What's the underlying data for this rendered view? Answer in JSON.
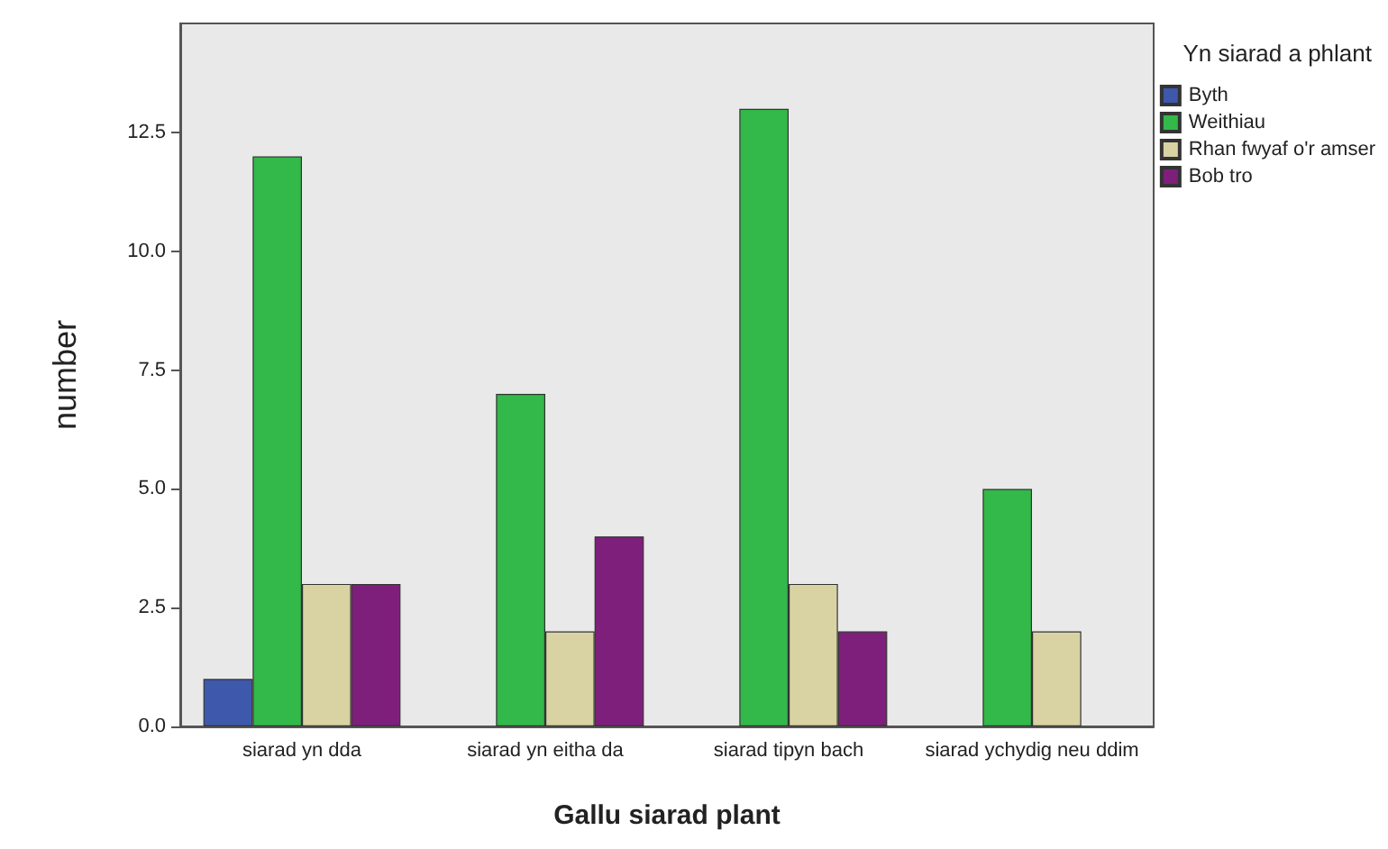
{
  "chart_data": {
    "type": "bar",
    "xlabel": "Gallu siarad plant",
    "ylabel": "number",
    "legend_title": "Yn siarad a phlant",
    "categories": [
      "siarad yn dda",
      "siarad yn eitha da",
      "siarad tipyn bach",
      "siarad ychydig neu ddim"
    ],
    "series": [
      {
        "name": "Byth",
        "color": "#3e58ac",
        "values": [
          1,
          null,
          null,
          null
        ]
      },
      {
        "name": "Weithiau",
        "color": "#33b84a",
        "values": [
          12,
          7,
          13,
          5
        ]
      },
      {
        "name": "Rhan fwyaf o'r amser",
        "color": "#d9d3a3",
        "values": [
          3,
          2,
          3,
          2
        ]
      },
      {
        "name": "Bob tro",
        "color": "#7d1f7b",
        "values": [
          3,
          4,
          2,
          null
        ]
      }
    ],
    "ylim": [
      0,
      14.8
    ],
    "yticks": [
      {
        "value": 0,
        "label": "0.0"
      },
      {
        "value": 2.5,
        "label": "2.5"
      },
      {
        "value": 5,
        "label": "5.0"
      },
      {
        "value": 7.5,
        "label": "7.5"
      },
      {
        "value": 10,
        "label": "10.0"
      },
      {
        "value": 12.5,
        "label": "12.5"
      }
    ],
    "grid": false,
    "legend": "top right"
  }
}
